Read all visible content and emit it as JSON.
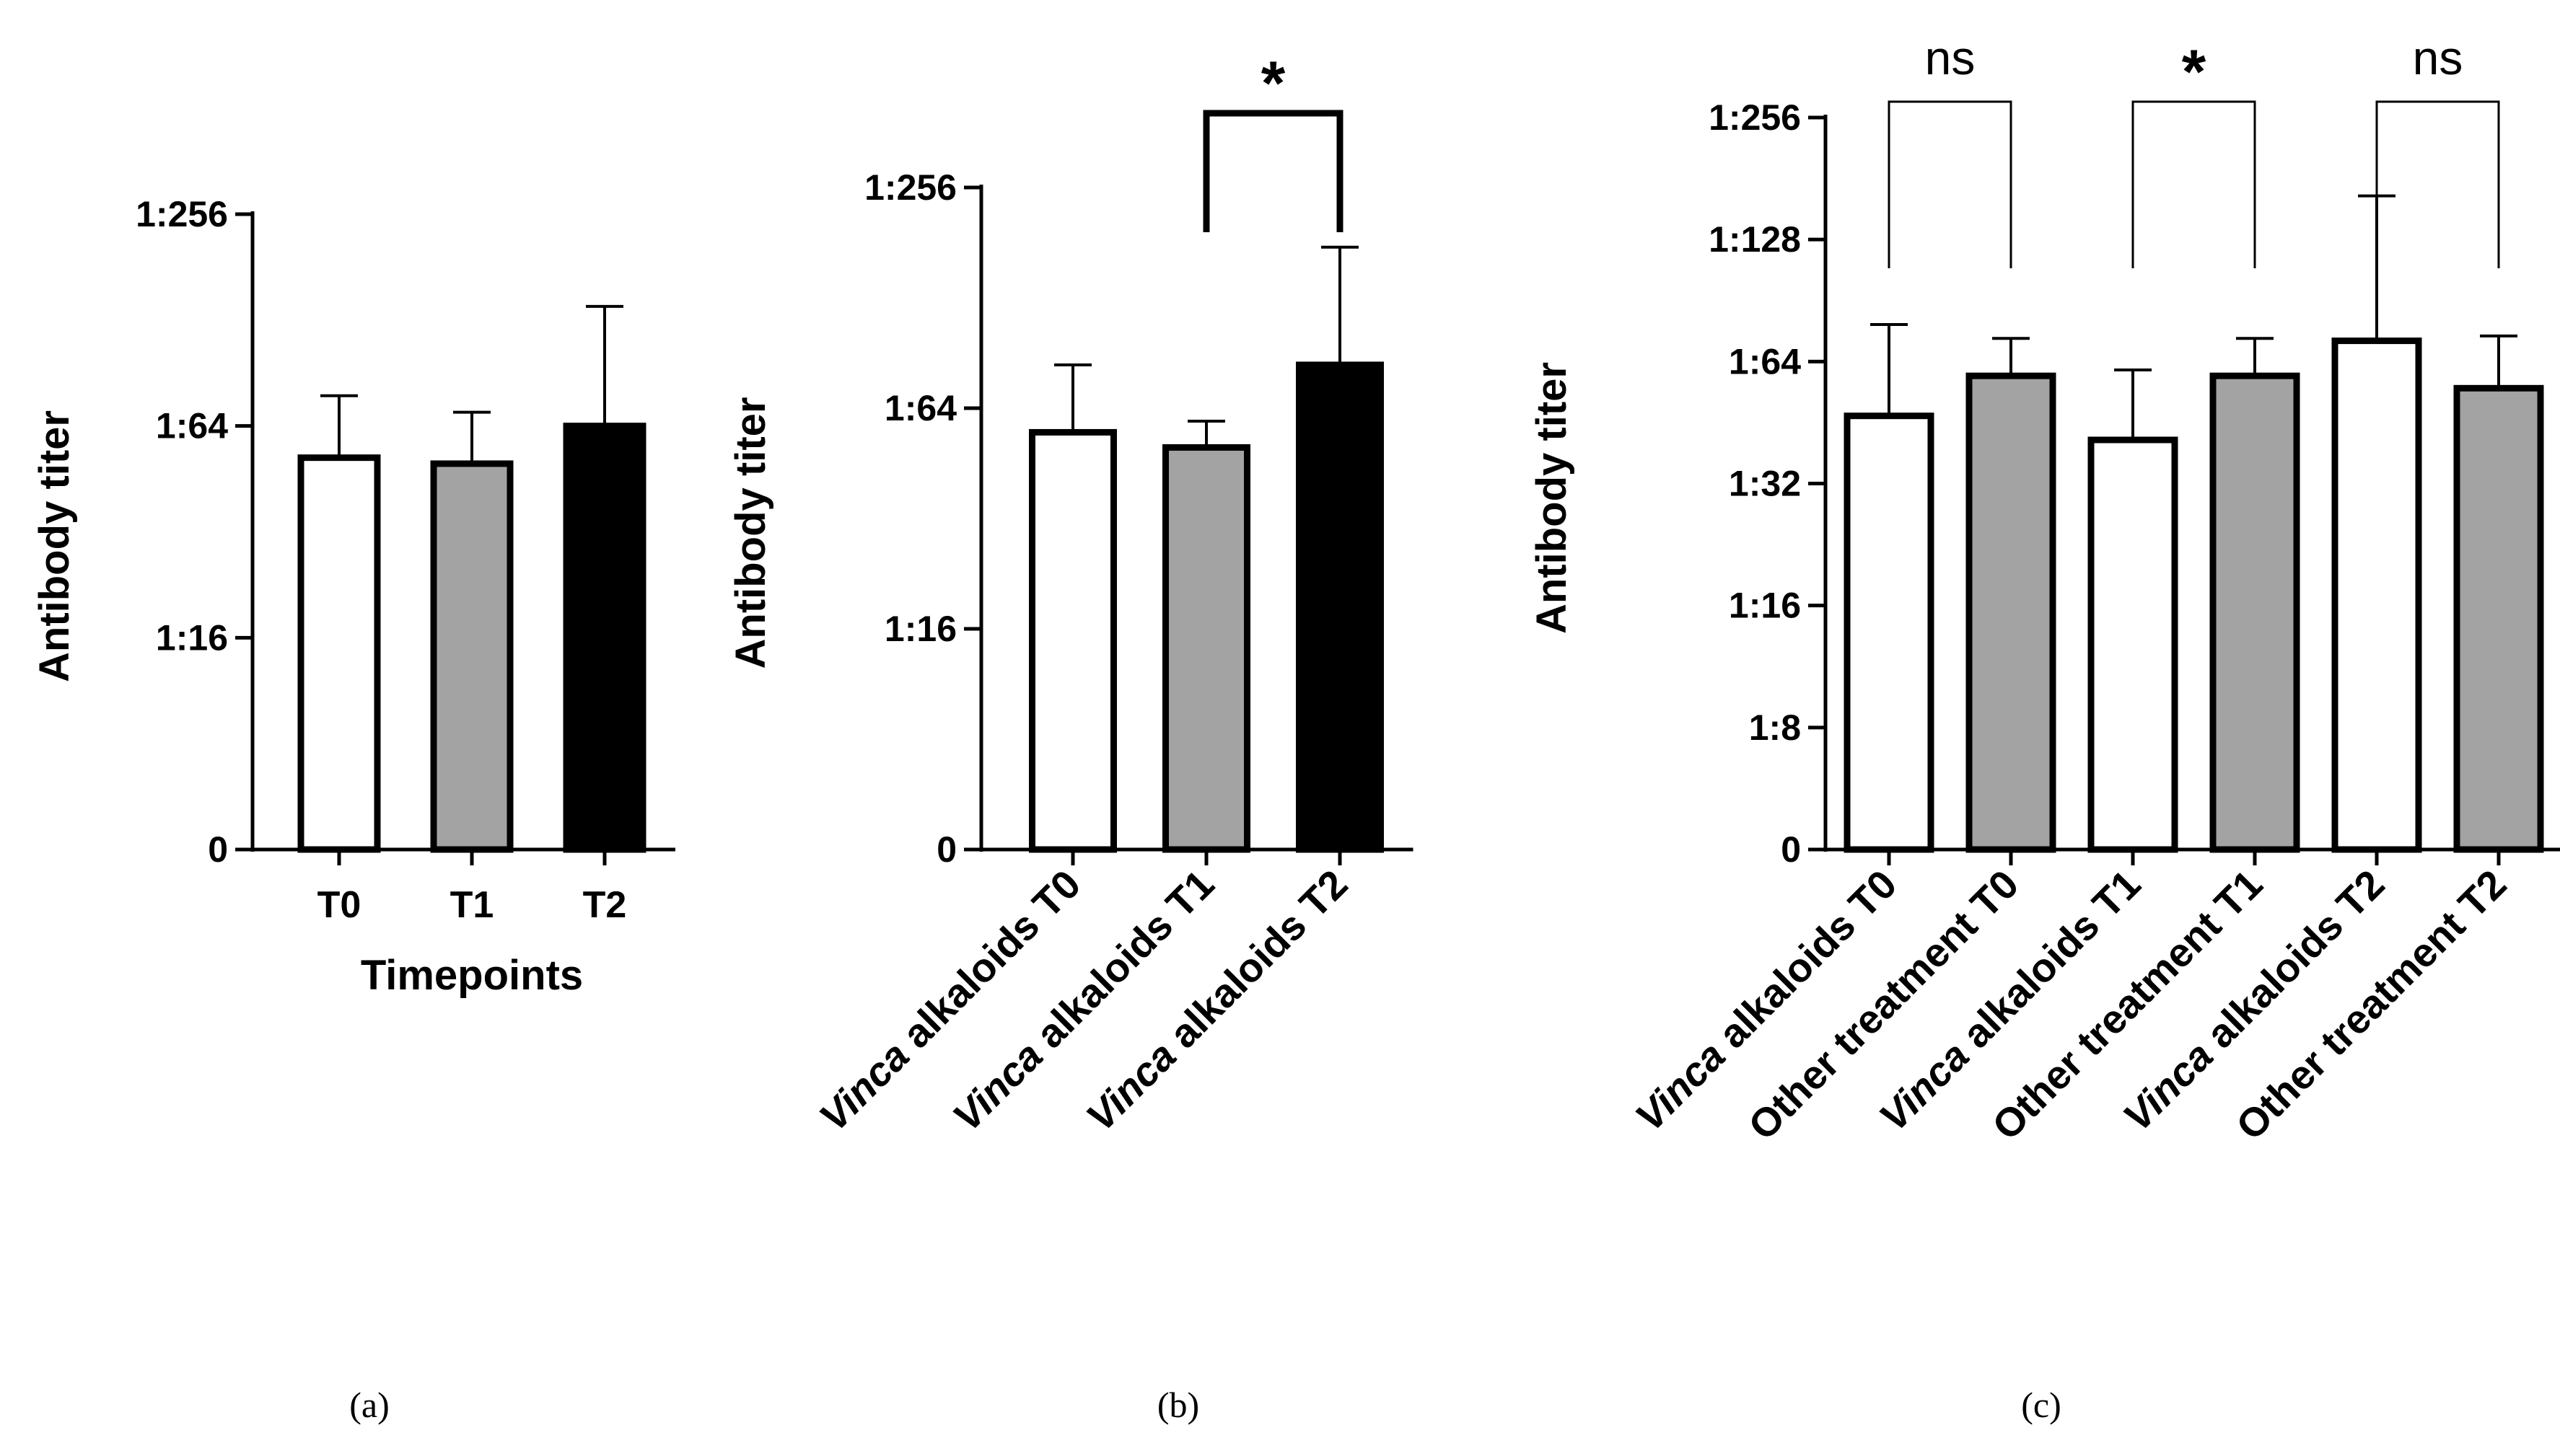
{
  "figure_captions": [
    "(a)",
    "(b)",
    "(c)"
  ],
  "chart_data": [
    {
      "panel": "(a)",
      "type": "bar",
      "title": "",
      "xlabel": "Timepoints",
      "ylabel": "Antibody titer",
      "y_scale": "log2",
      "y_ticks": [
        {
          "label": "0",
          "log2": 2
        },
        {
          "label": "1:16",
          "log2": 4
        },
        {
          "label": "1:64",
          "log2": 6
        },
        {
          "label": "1:256",
          "log2": 8
        }
      ],
      "ylim_log2": [
        2,
        8
      ],
      "categories": [
        "T0",
        "T1",
        "T2"
      ],
      "values": [
        52,
        50,
        64
      ],
      "error_upper": [
        78,
        70,
        140
      ],
      "fills": [
        "#ffffff",
        "#a3a3a3",
        "#000000"
      ],
      "significance": []
    },
    {
      "panel": "(b)",
      "type": "bar",
      "title": "",
      "xlabel": "",
      "ylabel": "Antibody titer",
      "y_scale": "log2",
      "y_ticks": [
        {
          "label": "0",
          "log2": 2
        },
        {
          "label": "1:16",
          "log2": 4
        },
        {
          "label": "1:64",
          "log2": 6
        },
        {
          "label": "1:256",
          "log2": 8
        }
      ],
      "ylim_log2": [
        2,
        8
      ],
      "categories": [
        "Vinca alkaloids T0",
        "Vinca alkaloids T1",
        "Vinca alkaloids T2"
      ],
      "values": [
        55,
        50,
        84
      ],
      "error_upper": [
        84,
        59,
        176
      ],
      "fills": [
        "#ffffff",
        "#a3a3a3",
        "#000000"
      ],
      "significance": [
        {
          "from": 1,
          "to": 2,
          "label": "*"
        }
      ]
    },
    {
      "panel": "(c)",
      "type": "bar",
      "title": "",
      "xlabel": "",
      "ylabel": "Antibody titer",
      "y_scale": "log2",
      "y_ticks": [
        {
          "label": "0",
          "log2": 2
        },
        {
          "label": "1:8",
          "log2": 3
        },
        {
          "label": "1:16",
          "log2": 4
        },
        {
          "label": "1:32",
          "log2": 5
        },
        {
          "label": "1:64",
          "log2": 6
        },
        {
          "label": "1:128",
          "log2": 7
        },
        {
          "label": "1:256",
          "log2": 8
        }
      ],
      "ylim_log2": [
        2,
        8
      ],
      "categories": [
        "Vinca alkaloids T0",
        "Other treatment T0",
        "Vinca alkaloids T1",
        "Other treatment T1",
        "Vinca alkaloids T2",
        "Other treatment T2"
      ],
      "values": [
        47,
        59,
        41,
        59,
        72,
        55
      ],
      "error_upper": [
        79,
        73,
        61,
        73,
        164,
        74
      ],
      "fills": [
        "#ffffff",
        "#a3a3a3",
        "#ffffff",
        "#a3a3a3",
        "#ffffff",
        "#a3a3a3"
      ],
      "significance": [
        {
          "from": 0,
          "to": 1,
          "label": "ns"
        },
        {
          "from": 2,
          "to": 3,
          "label": "*"
        },
        {
          "from": 4,
          "to": 5,
          "label": "ns"
        }
      ]
    }
  ]
}
